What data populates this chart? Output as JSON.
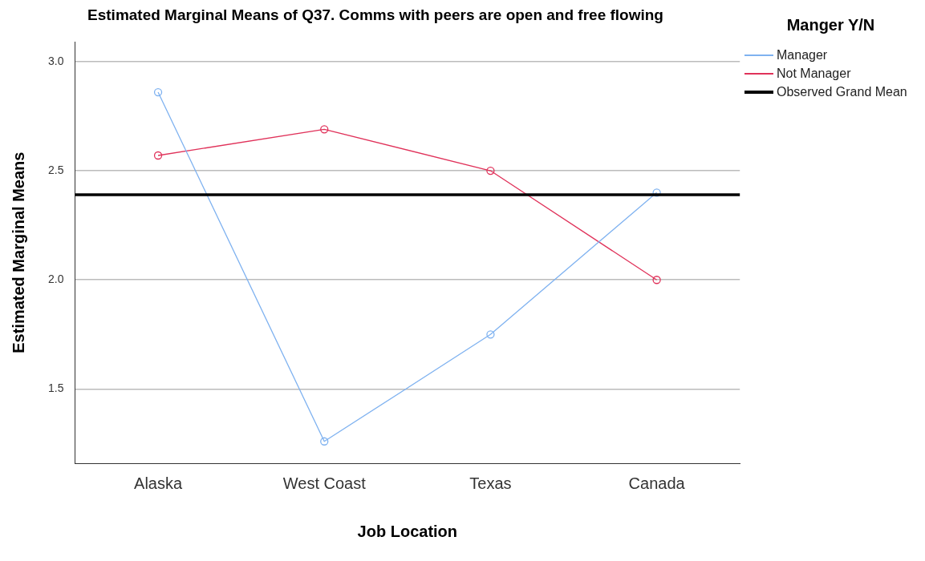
{
  "chart_data": {
    "type": "line",
    "title": "Estimated Marginal Means of Q37. Comms with peers are open and free flowing",
    "xlabel": "Job Location",
    "ylabel": "Estimated Marginal Means",
    "legend_title": "Manger Y/N",
    "categories": [
      "Alaska",
      "West Coast",
      "Texas",
      "Canada"
    ],
    "series": [
      {
        "name": "Manager",
        "color": "#7fb2f0",
        "values": [
          2.86,
          1.26,
          1.75,
          2.4
        ]
      },
      {
        "name": "Not Manager",
        "color": "#e0325a",
        "values": [
          2.57,
          2.69,
          2.5,
          2.0
        ]
      }
    ],
    "ref_lines": [
      {
        "axis": "y",
        "value": 2.39,
        "label": "Observed Grand Mean",
        "color": "#000000"
      }
    ],
    "ylim": [
      1.16,
      3.09
    ],
    "yticks": [
      {
        "value": 1.5,
        "label": "1.5"
      },
      {
        "value": 2,
        "label": "2.0"
      },
      {
        "value": 2.5,
        "label": "2.5"
      },
      {
        "value": 3,
        "label": "3.0"
      }
    ],
    "grid": "y",
    "legend": "top right",
    "marker": "circle",
    "line_style": "solid"
  }
}
